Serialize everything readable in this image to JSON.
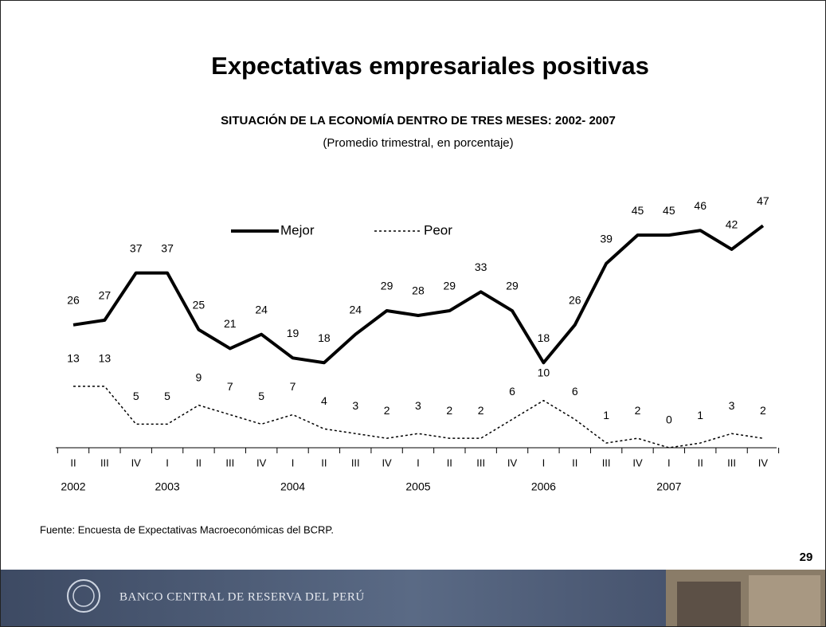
{
  "title": "Expectativas empresariales positivas",
  "chart_data": {
    "type": "line",
    "title": "SITUACIÓN DE LA ECONOMÍA DENTRO DE TRES MESES: 2002- 2007",
    "subtitle": "(Promedio trimestral, en porcentaje)",
    "categories": [
      "II",
      "III",
      "IV",
      "I",
      "II",
      "III",
      "IV",
      "I",
      "II",
      "III",
      "IV",
      "I",
      "II",
      "III",
      "IV",
      "I",
      "II",
      "III",
      "IV",
      "I",
      "II",
      "III",
      "IV"
    ],
    "years": [
      "2002",
      null,
      null,
      "2003",
      null,
      null,
      null,
      "2004",
      null,
      null,
      null,
      "2005",
      null,
      null,
      null,
      "2006",
      null,
      null,
      null,
      "2007",
      null,
      null,
      null
    ],
    "series": [
      {
        "name": "Mejor",
        "color": "#000000",
        "style": "solid",
        "values": [
          26,
          27,
          37,
          37,
          25,
          21,
          24,
          19,
          18,
          24,
          29,
          28,
          29,
          33,
          29,
          18,
          26,
          39,
          45,
          45,
          46,
          42,
          47
        ]
      },
      {
        "name": "Peor",
        "color": "#000000",
        "style": "dotted",
        "values": [
          13,
          13,
          5,
          5,
          9,
          7,
          5,
          7,
          4,
          3,
          2,
          3,
          2,
          2,
          6,
          10,
          6,
          1,
          2,
          0,
          1,
          3,
          2
        ]
      }
    ],
    "ylim": [
      0,
      55
    ],
    "source": "Fuente: Encuesta de Expectativas Macroeconómicas del BCRP."
  },
  "page_number": "29",
  "footer": {
    "bank_name": "BANCO CENTRAL DE RESERVA DEL PERÚ"
  }
}
